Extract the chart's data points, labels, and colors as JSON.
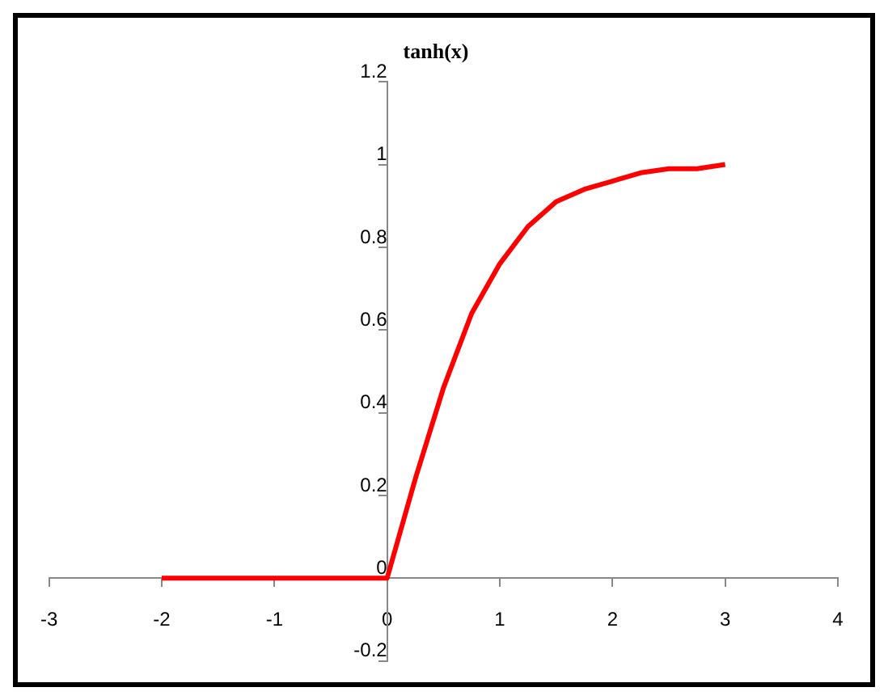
{
  "chart_data": {
    "type": "line",
    "title": "tanh(x)",
    "x": [
      -2,
      -1,
      0,
      0.25,
      0.5,
      0.75,
      1,
      1.25,
      1.5,
      1.75,
      2,
      2.25,
      2.5,
      2.75,
      3
    ],
    "series": [
      {
        "color": "#ff0000",
        "values": [
          0,
          0,
          0,
          0.24,
          0.46,
          0.64,
          0.76,
          0.85,
          0.91,
          0.94,
          0.96,
          0.98,
          0.99,
          0.99,
          1.0
        ]
      }
    ],
    "xlim": [
      -3,
      4
    ],
    "xticks": [
      -3,
      -2,
      -1,
      0,
      1,
      2,
      3,
      4
    ],
    "ylim": [
      -0.2,
      1.2
    ],
    "yticks": [
      -0.2,
      0,
      0.2,
      0.4,
      0.6,
      0.8,
      1,
      1.2
    ],
    "marker": "none",
    "line_style": "solid"
  }
}
